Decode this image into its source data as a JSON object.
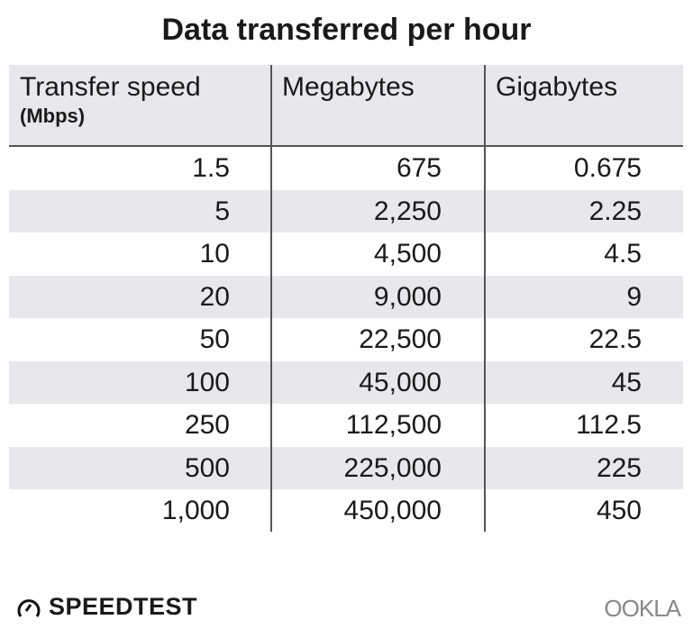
{
  "title": "Data transferred per hour",
  "chart_data": {
    "type": "table",
    "title": "Data transferred per hour",
    "columns": [
      {
        "label": "Transfer speed",
        "sublabel": "(Mbps)"
      },
      {
        "label": "Megabytes"
      },
      {
        "label": "Gigabytes"
      }
    ],
    "rows": [
      [
        "1.5",
        "675",
        "0.675"
      ],
      [
        "5",
        "2,250",
        "2.25"
      ],
      [
        "10",
        "4,500",
        "4.5"
      ],
      [
        "20",
        "9,000",
        "9"
      ],
      [
        "50",
        "22,500",
        "22.5"
      ],
      [
        "100",
        "45,000",
        "45"
      ],
      [
        "250",
        "112,500",
        "112.5"
      ],
      [
        "500",
        "225,000",
        "225"
      ],
      [
        "1,000",
        "450,000",
        "450"
      ]
    ]
  },
  "footer": {
    "brand": "SPEEDTEST",
    "brand_icon": "speedometer-icon",
    "logo": "OOKLA"
  },
  "colors": {
    "header_bg": "#e8e8ec",
    "stripe": "#e8e8ec",
    "rule": "#555555"
  }
}
